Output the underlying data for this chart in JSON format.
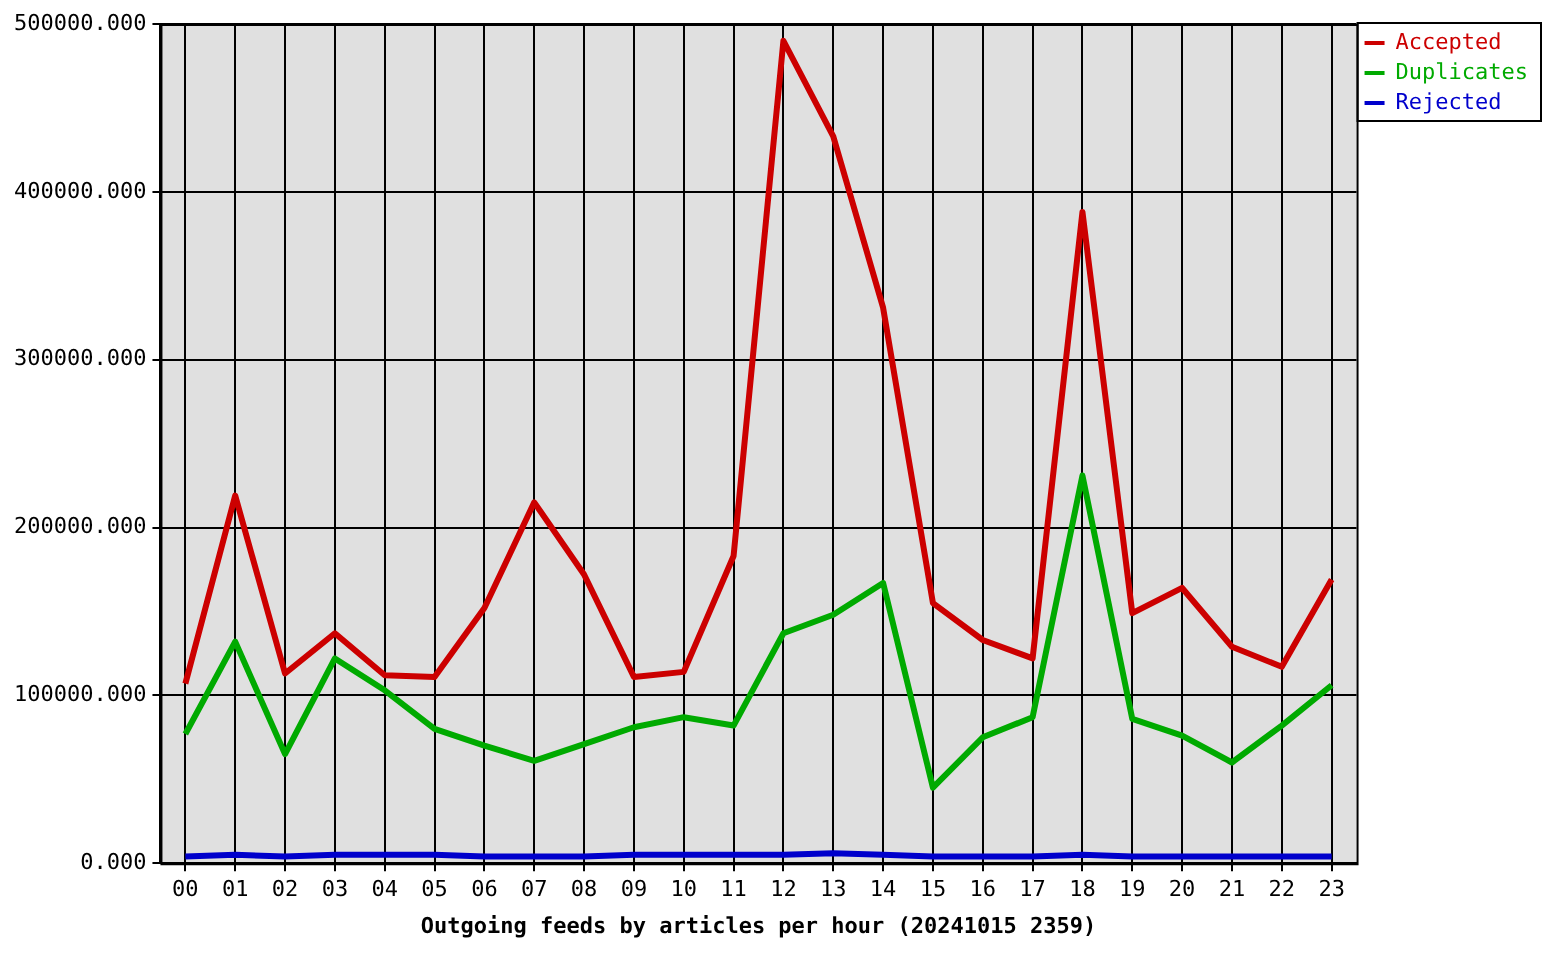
{
  "chart_data": {
    "type": "line",
    "xlabel": "Outgoing feeds by articles per hour (20241015 2359)",
    "categories": [
      "00",
      "01",
      "02",
      "03",
      "04",
      "05",
      "06",
      "07",
      "08",
      "09",
      "10",
      "11",
      "12",
      "13",
      "14",
      "15",
      "16",
      "17",
      "18",
      "19",
      "20",
      "21",
      "22",
      "23"
    ],
    "series": [
      {
        "name": "Accepted",
        "color": "#cc0000",
        "values": [
          107000,
          219000,
          113000,
          137000,
          112000,
          111000,
          152000,
          215000,
          172000,
          111000,
          114000,
          183000,
          490000,
          433000,
          331000,
          155000,
          133000,
          122000,
          388000,
          149000,
          164000,
          129000,
          117000,
          169000
        ]
      },
      {
        "name": "Duplicates",
        "color": "#00aa00",
        "values": [
          77000,
          132000,
          65000,
          122000,
          103000,
          80000,
          70000,
          61000,
          71000,
          81000,
          87000,
          82000,
          137000,
          148000,
          167000,
          45000,
          75000,
          87000,
          231000,
          86000,
          76000,
          60000,
          82000,
          106000
        ]
      },
      {
        "name": "Rejected",
        "color": "#0000cc",
        "values": [
          4000,
          5000,
          4000,
          5000,
          5000,
          5000,
          4000,
          4000,
          4000,
          5000,
          5000,
          5000,
          5000,
          6000,
          5000,
          4000,
          4000,
          4000,
          5000,
          4000,
          4000,
          4000,
          4000,
          4000
        ]
      }
    ],
    "ylim": [
      0,
      500000
    ],
    "yticks": [
      {
        "value": 0,
        "label": "0.000"
      },
      {
        "value": 100000,
        "label": "100000.000"
      },
      {
        "value": 200000,
        "label": "200000.000"
      },
      {
        "value": 300000,
        "label": "300000.000"
      },
      {
        "value": 400000,
        "label": "400000.000"
      },
      {
        "value": 500000,
        "label": "500000.000"
      }
    ],
    "grid": true,
    "legend": "top right",
    "marker": "none",
    "line_style": "solid"
  }
}
